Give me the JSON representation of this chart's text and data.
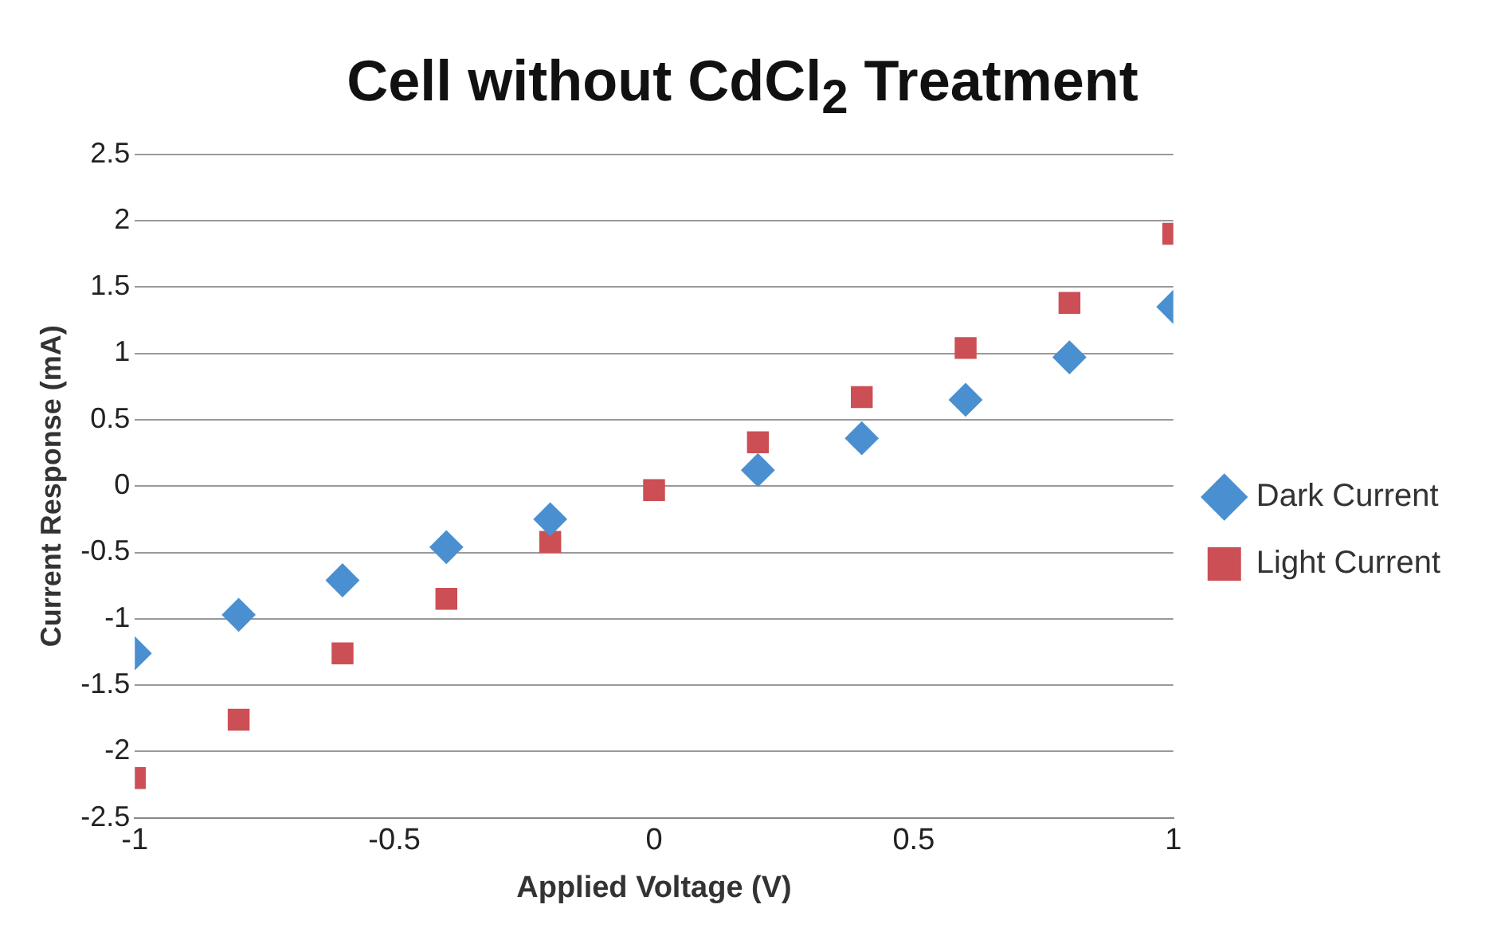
{
  "chart_data": {
    "type": "scatter",
    "title": "Cell without CdCl$_{2}$ Treatment",
    "xlabel": "Applied Voltage (V)",
    "ylabel": "Current Response (mA)",
    "x": [
      -1,
      -0.8,
      -0.6,
      -0.4,
      -0.2,
      0,
      0.2,
      0.4,
      0.6,
      0.8,
      1
    ],
    "series": [
      {
        "name": "Dark Current",
        "color": "#4a90d0",
        "marker": "diamond",
        "values": [
          -1.26,
          -0.97,
          -0.71,
          -0.46,
          -0.25,
          null,
          0.12,
          0.36,
          0.65,
          0.97,
          1.35
        ]
      },
      {
        "name": "Light Current",
        "color": "#cc4f55",
        "marker": "square",
        "values": [
          -2.2,
          -1.76,
          -1.26,
          -0.85,
          -0.42,
          -0.03,
          0.33,
          0.67,
          1.04,
          1.38,
          1.9
        ]
      }
    ],
    "xlim": [
      -1,
      1
    ],
    "xticks": [
      -1,
      -0.5,
      0,
      0.5,
      1
    ],
    "ylim": [
      -2.5,
      2.5
    ],
    "yticks": [
      -2.5,
      -2,
      -1.5,
      -1,
      -0.5,
      0,
      0.5,
      1,
      1.5,
      2,
      2.5
    ],
    "grid": "y",
    "legend": "right"
  }
}
